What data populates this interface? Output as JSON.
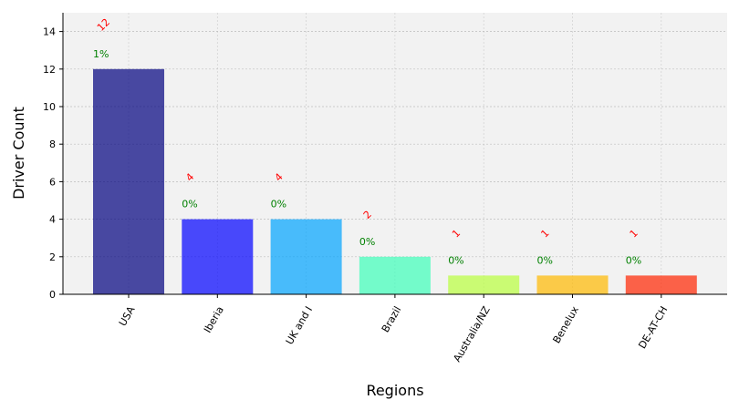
{
  "chart_data": {
    "type": "bar",
    "title": "",
    "xlabel": "Regions",
    "ylabel": "Driver Count",
    "categories": [
      "USA",
      "Iberia",
      "UK and I",
      "Brazil",
      "Australia/NZ",
      "Benelux",
      "DE-AT-CH"
    ],
    "values": [
      12,
      4,
      4,
      2,
      1,
      1,
      1
    ],
    "count_labels": [
      "12",
      "4",
      "4",
      "2",
      "1",
      "1",
      "1"
    ],
    "percent_labels": [
      "1%",
      "0%",
      "0%",
      "0%",
      "0%",
      "0%",
      "0%"
    ],
    "bar_colors": [
      "#00007f",
      "#0000ff",
      "#00a4ff",
      "#3dffb9",
      "#b9ff3d",
      "#ffb900",
      "#ff2300"
    ],
    "count_label_color": "#ff0000",
    "percent_label_color": "#008000",
    "plot_background": "#f2f2f2",
    "yticks": [
      0,
      2,
      4,
      6,
      8,
      10,
      12,
      14
    ],
    "ylim": [
      0,
      15
    ],
    "grid": true,
    "legend": "none"
  }
}
